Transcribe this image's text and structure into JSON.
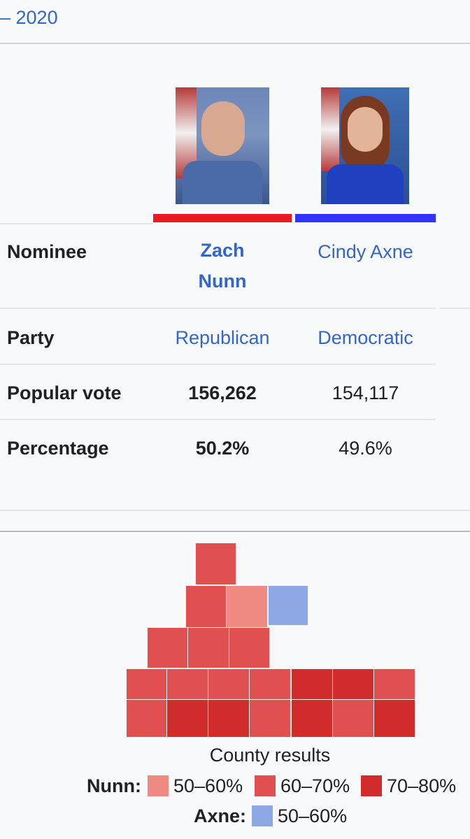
{
  "header": {
    "link": "– 2020"
  },
  "table": {
    "row_labels": [
      "Nominee",
      "Party",
      "Popular vote",
      "Percentage"
    ],
    "candidates": [
      {
        "name": "Zach Nunn",
        "party": "Republican",
        "popular_vote": "156,262",
        "percentage": "50.2%"
      },
      {
        "name": "Cindy Axne",
        "party": "Democratic",
        "popular_vote": "154,117",
        "percentage": "49.6%"
      }
    ]
  },
  "map": {
    "caption": "County results",
    "legend": [
      {
        "name": "Nunn:",
        "items": [
          "50–60%",
          "60–70%",
          "70–80%"
        ]
      },
      {
        "name": "Axne:",
        "items": [
          "50–60%"
        ]
      }
    ]
  }
}
